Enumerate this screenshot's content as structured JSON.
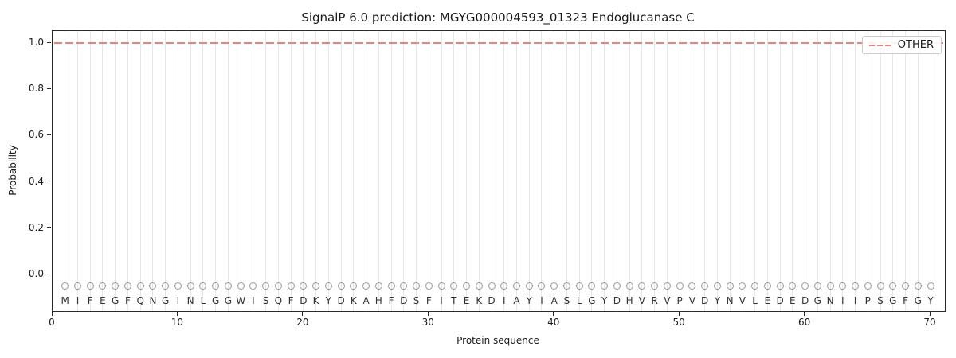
{
  "chart_data": {
    "type": "line",
    "title": "SignalP 6.0 prediction: MGYG000004593_01323 Endoglucanase C",
    "xlabel": "Protein sequence",
    "ylabel": "Probability",
    "x_ticks": [
      0,
      10,
      20,
      30,
      40,
      50,
      60,
      70
    ],
    "y_ticks": [
      0.0,
      0.2,
      0.4,
      0.6,
      0.8,
      1.0
    ],
    "xlim": [
      0,
      71.2
    ],
    "ylim": [
      -0.17,
      1.05
    ],
    "grid": "vertical-per-residue",
    "legend": {
      "position": "upper right",
      "entries": [
        {
          "label": "OTHER",
          "color": "#f08080",
          "style": "dashed"
        }
      ]
    },
    "series": [
      {
        "name": "OTHER",
        "style": "dashed",
        "color": "#f08080",
        "constant_value": 1.0,
        "x_range": [
          1,
          70
        ]
      }
    ],
    "sequence": "MIFEGFQNGINLGGWISQFDKYDKAHFDSFITEKDIAYIASLGYDHVRVPVDYNVLEDEDGNIIPSGFGY",
    "sequence_length": 70,
    "marker_y": -0.05,
    "colors": {
      "line": "#f08080",
      "grid": "#e7e7e7",
      "marker": "#999999",
      "text": "#1a1a1a",
      "letters": "#333333",
      "spine": "#2b2b2b",
      "legend_border": "#cccccc"
    }
  }
}
